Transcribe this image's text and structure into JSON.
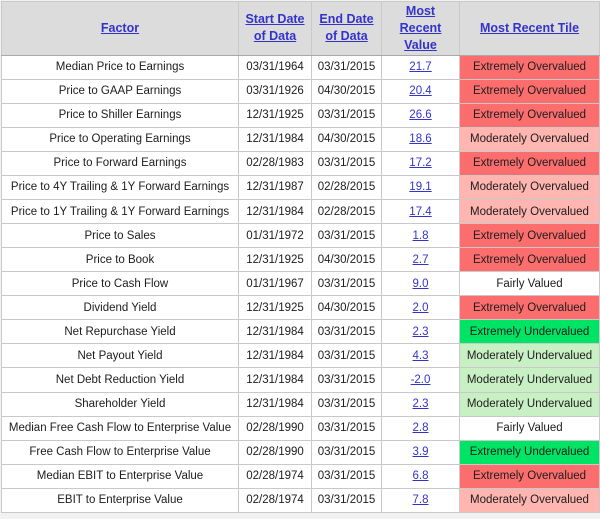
{
  "table": {
    "columns": [
      {
        "label": "Factor"
      },
      {
        "label": "Start Date of Data"
      },
      {
        "label": "End Date of Data"
      },
      {
        "label": "Most Recent Value"
      },
      {
        "label": "Most Recent Tile"
      }
    ],
    "rows": [
      {
        "factor": "Median Price to Earnings",
        "start_date": "03/31/1964",
        "end_date": "03/31/2015",
        "value": "21.7",
        "tile": "Extremely Overvalued",
        "tile_class": "extremely_overvalued"
      },
      {
        "factor": "Price to GAAP Earnings",
        "start_date": "03/31/1926",
        "end_date": "04/30/2015",
        "value": "20.4",
        "tile": "Extremely Overvalued",
        "tile_class": "extremely_overvalued"
      },
      {
        "factor": "Price to Shiller Earnings",
        "start_date": "12/31/1925",
        "end_date": "03/31/2015",
        "value": "26.6",
        "tile": "Extremely Overvalued",
        "tile_class": "extremely_overvalued"
      },
      {
        "factor": "Price to Operating Earnings",
        "start_date": "12/31/1984",
        "end_date": "04/30/2015",
        "value": "18.6",
        "tile": "Moderately Overvalued",
        "tile_class": "moderately_overvalued"
      },
      {
        "factor": "Price to Forward Earnings",
        "start_date": "02/28/1983",
        "end_date": "03/31/2015",
        "value": "17.2",
        "tile": "Extremely Overvalued",
        "tile_class": "extremely_overvalued"
      },
      {
        "factor": "Price to 4Y Trailing & 1Y Forward Earnings",
        "start_date": "12/31/1987",
        "end_date": "02/28/2015",
        "value": "19.1",
        "tile": "Moderately Overvalued",
        "tile_class": "moderately_overvalued"
      },
      {
        "factor": "Price to 1Y Trailing & 1Y Forward Earnings",
        "start_date": "12/31/1984",
        "end_date": "02/28/2015",
        "value": "17.4",
        "tile": "Moderately Overvalued",
        "tile_class": "moderately_overvalued"
      },
      {
        "factor": "Price to Sales",
        "start_date": "01/31/1972",
        "end_date": "03/31/2015",
        "value": "1.8",
        "tile": "Extremely Overvalued",
        "tile_class": "extremely_overvalued"
      },
      {
        "factor": "Price to Book",
        "start_date": "12/31/1925",
        "end_date": "04/30/2015",
        "value": "2.7",
        "tile": "Extremely Overvalued",
        "tile_class": "extremely_overvalued"
      },
      {
        "factor": "Price to Cash Flow",
        "start_date": "01/31/1967",
        "end_date": "03/31/2015",
        "value": "9.0",
        "tile": "Fairly Valued",
        "tile_class": "fairly_valued"
      },
      {
        "factor": "Dividend Yield",
        "start_date": "12/31/1925",
        "end_date": "04/30/2015",
        "value": "2.0",
        "tile": "Extremely Overvalued",
        "tile_class": "extremely_overvalued"
      },
      {
        "factor": "Net Repurchase Yield",
        "start_date": "12/31/1984",
        "end_date": "03/31/2015",
        "value": "2.3",
        "tile": "Extremely Undervalued",
        "tile_class": "extremely_undervalued"
      },
      {
        "factor": "Net Payout Yield",
        "start_date": "12/31/1984",
        "end_date": "03/31/2015",
        "value": "4.3",
        "tile": "Moderately Undervalued",
        "tile_class": "moderately_undervalued"
      },
      {
        "factor": "Net Debt Reduction Yield",
        "start_date": "12/31/1984",
        "end_date": "03/31/2015",
        "value": "-2.0",
        "tile": "Moderately Undervalued",
        "tile_class": "moderately_undervalued"
      },
      {
        "factor": "Shareholder Yield",
        "start_date": "12/31/1984",
        "end_date": "03/31/2015",
        "value": "2.3",
        "tile": "Moderately Undervalued",
        "tile_class": "moderately_undervalued"
      },
      {
        "factor": "Median Free Cash Flow to Enterprise Value",
        "start_date": "02/28/1990",
        "end_date": "03/31/2015",
        "value": "2.8",
        "tile": "Fairly Valued",
        "tile_class": "fairly_valued"
      },
      {
        "factor": "Free Cash Flow to Enterprise Value",
        "start_date": "02/28/1990",
        "end_date": "03/31/2015",
        "value": "3.9",
        "tile": "Extremely Undervalued",
        "tile_class": "extremely_undervalued"
      },
      {
        "factor": "Median EBIT to Enterprise Value",
        "start_date": "02/28/1974",
        "end_date": "03/31/2015",
        "value": "6.8",
        "tile": "Extremely Overvalued",
        "tile_class": "extremely_overvalued"
      },
      {
        "factor": "EBIT to Enterprise Value",
        "start_date": "02/28/1974",
        "end_date": "03/31/2015",
        "value": "7.8",
        "tile": "Moderately Overvalued",
        "tile_class": "moderately_overvalued"
      }
    ]
  },
  "colors": {
    "header_background": "#dcdcdc",
    "link_blue": "#3333cc",
    "grid_border": "#c9c9c9",
    "extremely_overvalued": "#fc6e6e",
    "moderately_overvalued": "#ffb5b0",
    "fairly_valued": "#ffffff",
    "extremely_undervalued": "#00e466",
    "moderately_undervalued": "#c9f0c4"
  }
}
